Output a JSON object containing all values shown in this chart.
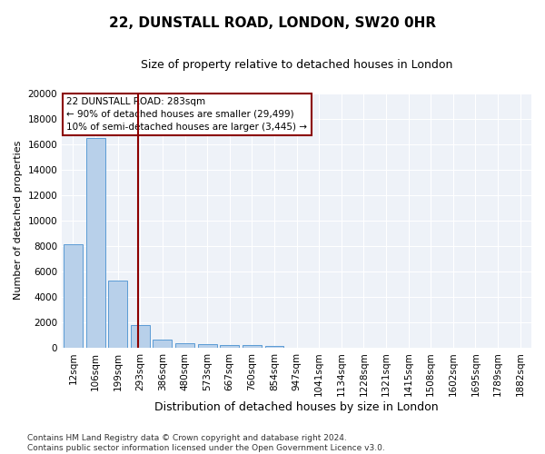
{
  "title": "22, DUNSTALL ROAD, LONDON, SW20 0HR",
  "subtitle": "Size of property relative to detached houses in London",
  "xlabel": "Distribution of detached houses by size in London",
  "ylabel": "Number of detached properties",
  "categories": [
    "12sqm",
    "106sqm",
    "199sqm",
    "293sqm",
    "386sqm",
    "480sqm",
    "573sqm",
    "667sqm",
    "760sqm",
    "854sqm",
    "947sqm",
    "1041sqm",
    "1134sqm",
    "1228sqm",
    "1321sqm",
    "1415sqm",
    "1508sqm",
    "1602sqm",
    "1695sqm",
    "1789sqm",
    "1882sqm"
  ],
  "values": [
    8100,
    16500,
    5300,
    1800,
    650,
    330,
    260,
    210,
    190,
    160,
    0,
    0,
    0,
    0,
    0,
    0,
    0,
    0,
    0,
    0,
    0
  ],
  "bar_color": "#b8d0ea",
  "bar_edge_color": "#5b9bd5",
  "vline_color": "#8b0000",
  "vline_pos": 2.905,
  "annotation_box_text": "22 DUNSTALL ROAD: 283sqm\n← 90% of detached houses are smaller (29,499)\n10% of semi-detached houses are larger (3,445) →",
  "box_edge_color": "#8b0000",
  "footnote": "Contains HM Land Registry data © Crown copyright and database right 2024.\nContains public sector information licensed under the Open Government Licence v3.0.",
  "ylim": [
    0,
    20000
  ],
  "yticks": [
    0,
    2000,
    4000,
    6000,
    8000,
    10000,
    12000,
    14000,
    16000,
    18000,
    20000
  ],
  "background_color": "#eef2f8",
  "title_fontsize": 11,
  "subtitle_fontsize": 9,
  "ylabel_fontsize": 8,
  "xlabel_fontsize": 9,
  "tick_fontsize": 7.5,
  "annotation_fontsize": 7.5,
  "footnote_fontsize": 6.5
}
